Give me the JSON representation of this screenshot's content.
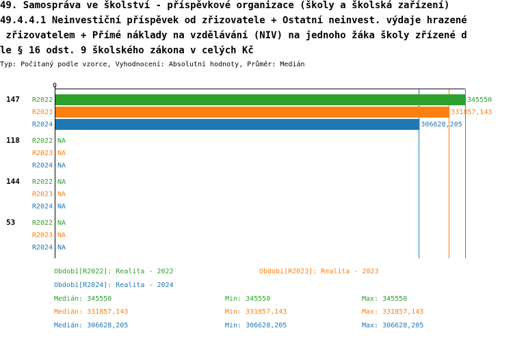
{
  "header": {
    "line1": "49. Samospráva ve školství - příspěvkové organizace (školy a školská zařízení)",
    "line2": "49.4.4.1 Neinvestiční příspěvek od zřizovatele + Ostatní neinvest. výdaje hrazené",
    "line3": " zřizovatelem + Přímé náklady na vzdělávání (NIV) na jednoho žáka školy zřízené d",
    "line4": "le § 16 odst. 9 školského zákona v celých Kč",
    "subtitle": "Typ: Počítaný podle vzorce, Vyhodnocení: Absolutní hodnoty, Průměr: Medián"
  },
  "colors": {
    "R2022": "#2ea02e",
    "R2023": "#ff7f0e",
    "R2024": "#1f77b4",
    "axis": "#000000"
  },
  "chart_data": {
    "type": "bar",
    "orientation": "horizontal",
    "x_tick_labels": [
      "0"
    ],
    "xlim": [
      0,
      345550
    ],
    "categories": [
      "147",
      "118",
      "144",
      "53"
    ],
    "series": [
      {
        "name": "R2022",
        "values": [
          345550,
          null,
          null,
          null
        ],
        "labels": [
          "345550",
          "NA",
          "NA",
          "NA"
        ]
      },
      {
        "name": "R2023",
        "values": [
          331857.143,
          null,
          null,
          null
        ],
        "labels": [
          "331857,143",
          "NA",
          "NA",
          "NA"
        ]
      },
      {
        "name": "R2024",
        "values": [
          306628.205,
          null,
          null,
          null
        ],
        "labels": [
          "306628,205",
          "NA",
          "NA",
          "NA"
        ]
      }
    ],
    "reference_lines": [
      {
        "series": "R2022",
        "value": 345550
      },
      {
        "series": "R2023",
        "value": 331857.143
      },
      {
        "series": "R2024",
        "value": 306628.205
      }
    ]
  },
  "legend": {
    "r2022": "Období[R2022]: Realita - 2022",
    "r2023": "Období[R2023]: Realita - 2023",
    "r2024": "Období[R2024]: Realita - 2024"
  },
  "stats": [
    {
      "median": "Medián: 345550",
      "min": "Min: 345550",
      "max": "Max: 345550"
    },
    {
      "median": "Medián: 331857,143",
      "min": "Min: 331857,143",
      "max": "Max: 331857,143"
    },
    {
      "median": "Medián: 306628,205",
      "min": "Min: 306628,205",
      "max": "Max: 306628,205"
    }
  ]
}
